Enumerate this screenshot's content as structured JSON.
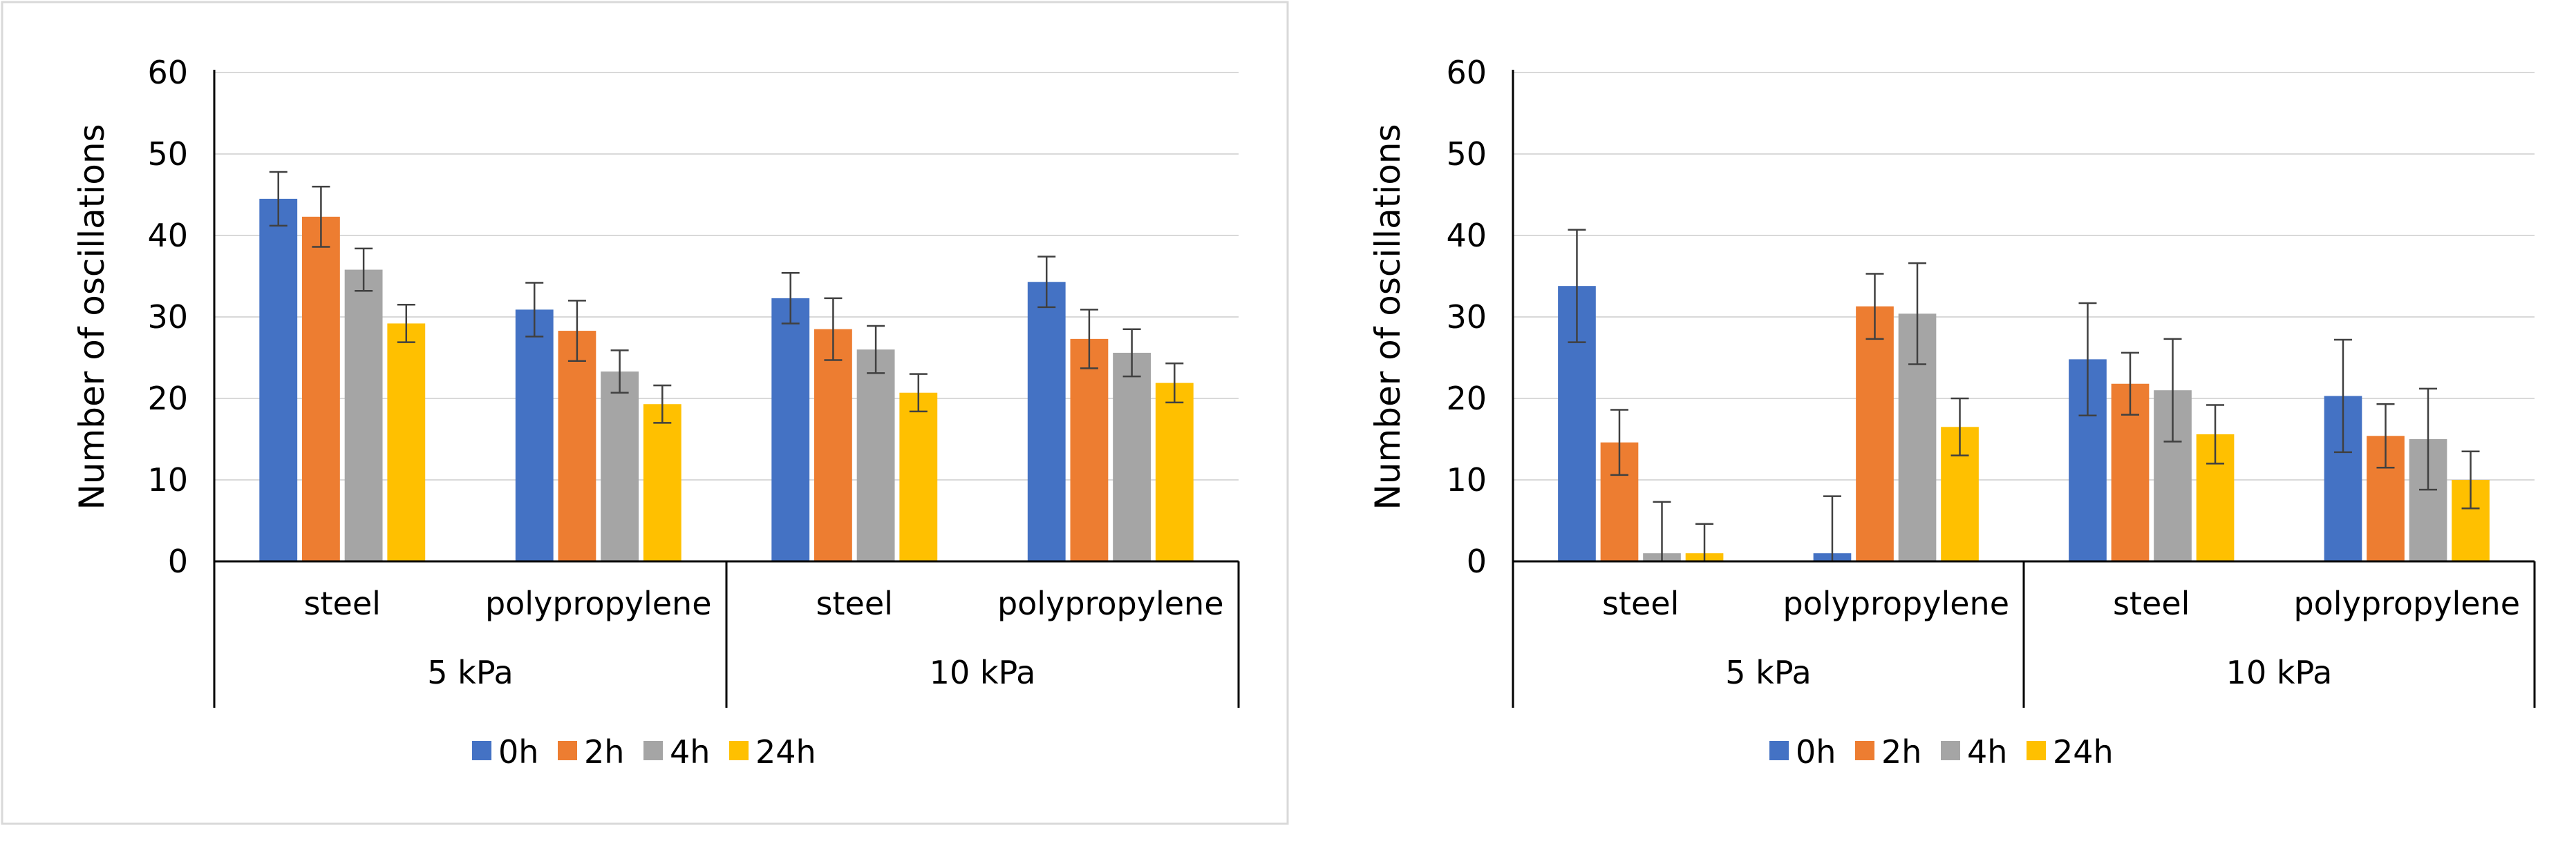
{
  "chart_data": [
    {
      "type": "bar",
      "ylabel": "Number of oscillations",
      "ylim": [
        0,
        60
      ],
      "yticks": [
        0,
        10,
        20,
        30,
        40,
        50,
        60
      ],
      "groups": [
        {
          "label": "5 kPa",
          "categories": [
            "steel",
            "polypropylene"
          ]
        },
        {
          "label": "10 kPa",
          "categories": [
            "steel",
            "polypropylene"
          ]
        }
      ],
      "series": [
        {
          "name": "0h",
          "color": "#4472C4",
          "values": [
            44.5,
            30.9,
            32.3,
            34.3
          ],
          "errors": [
            3.3,
            3.3,
            3.1,
            3.1
          ]
        },
        {
          "name": "2h",
          "color": "#ED7D31",
          "values": [
            42.3,
            28.3,
            28.5,
            27.3
          ],
          "errors": [
            3.7,
            3.7,
            3.8,
            3.6
          ]
        },
        {
          "name": "4h",
          "color": "#A5A5A5",
          "values": [
            35.8,
            23.3,
            26.0,
            25.6
          ],
          "errors": [
            2.6,
            2.6,
            2.9,
            2.9
          ]
        },
        {
          "name": "24h",
          "color": "#FFC000",
          "values": [
            29.2,
            19.3,
            20.7,
            21.9
          ],
          "errors": [
            2.3,
            2.3,
            2.3,
            2.4
          ]
        }
      ],
      "legend": "bottom"
    },
    {
      "type": "bar",
      "ylabel": "Number of oscillations",
      "ylim": [
        0,
        60
      ],
      "yticks": [
        0,
        10,
        20,
        30,
        40,
        50,
        60
      ],
      "groups": [
        {
          "label": "5 kPa",
          "categories": [
            "steel",
            "polypropylene"
          ]
        },
        {
          "label": "10 kPa",
          "categories": [
            "steel",
            "polypropylene"
          ]
        }
      ],
      "series": [
        {
          "name": "0h",
          "color": "#4472C4",
          "values": [
            33.8,
            1.0,
            24.8,
            20.3
          ],
          "errors": [
            6.9,
            7.0,
            6.9,
            6.9
          ]
        },
        {
          "name": "2h",
          "color": "#ED7D31",
          "values": [
            14.6,
            31.3,
            21.8,
            15.4
          ],
          "errors": [
            4.0,
            4.0,
            3.8,
            3.9
          ]
        },
        {
          "name": "4h",
          "color": "#A5A5A5",
          "values": [
            1.0,
            30.4,
            21.0,
            15.0
          ],
          "errors": [
            6.3,
            6.2,
            6.3,
            6.2
          ]
        },
        {
          "name": "24h",
          "color": "#FFC000",
          "values": [
            1.0,
            16.5,
            15.6,
            10.0
          ],
          "errors": [
            3.6,
            3.5,
            3.6,
            3.5
          ]
        }
      ],
      "legend": "bottom"
    }
  ]
}
